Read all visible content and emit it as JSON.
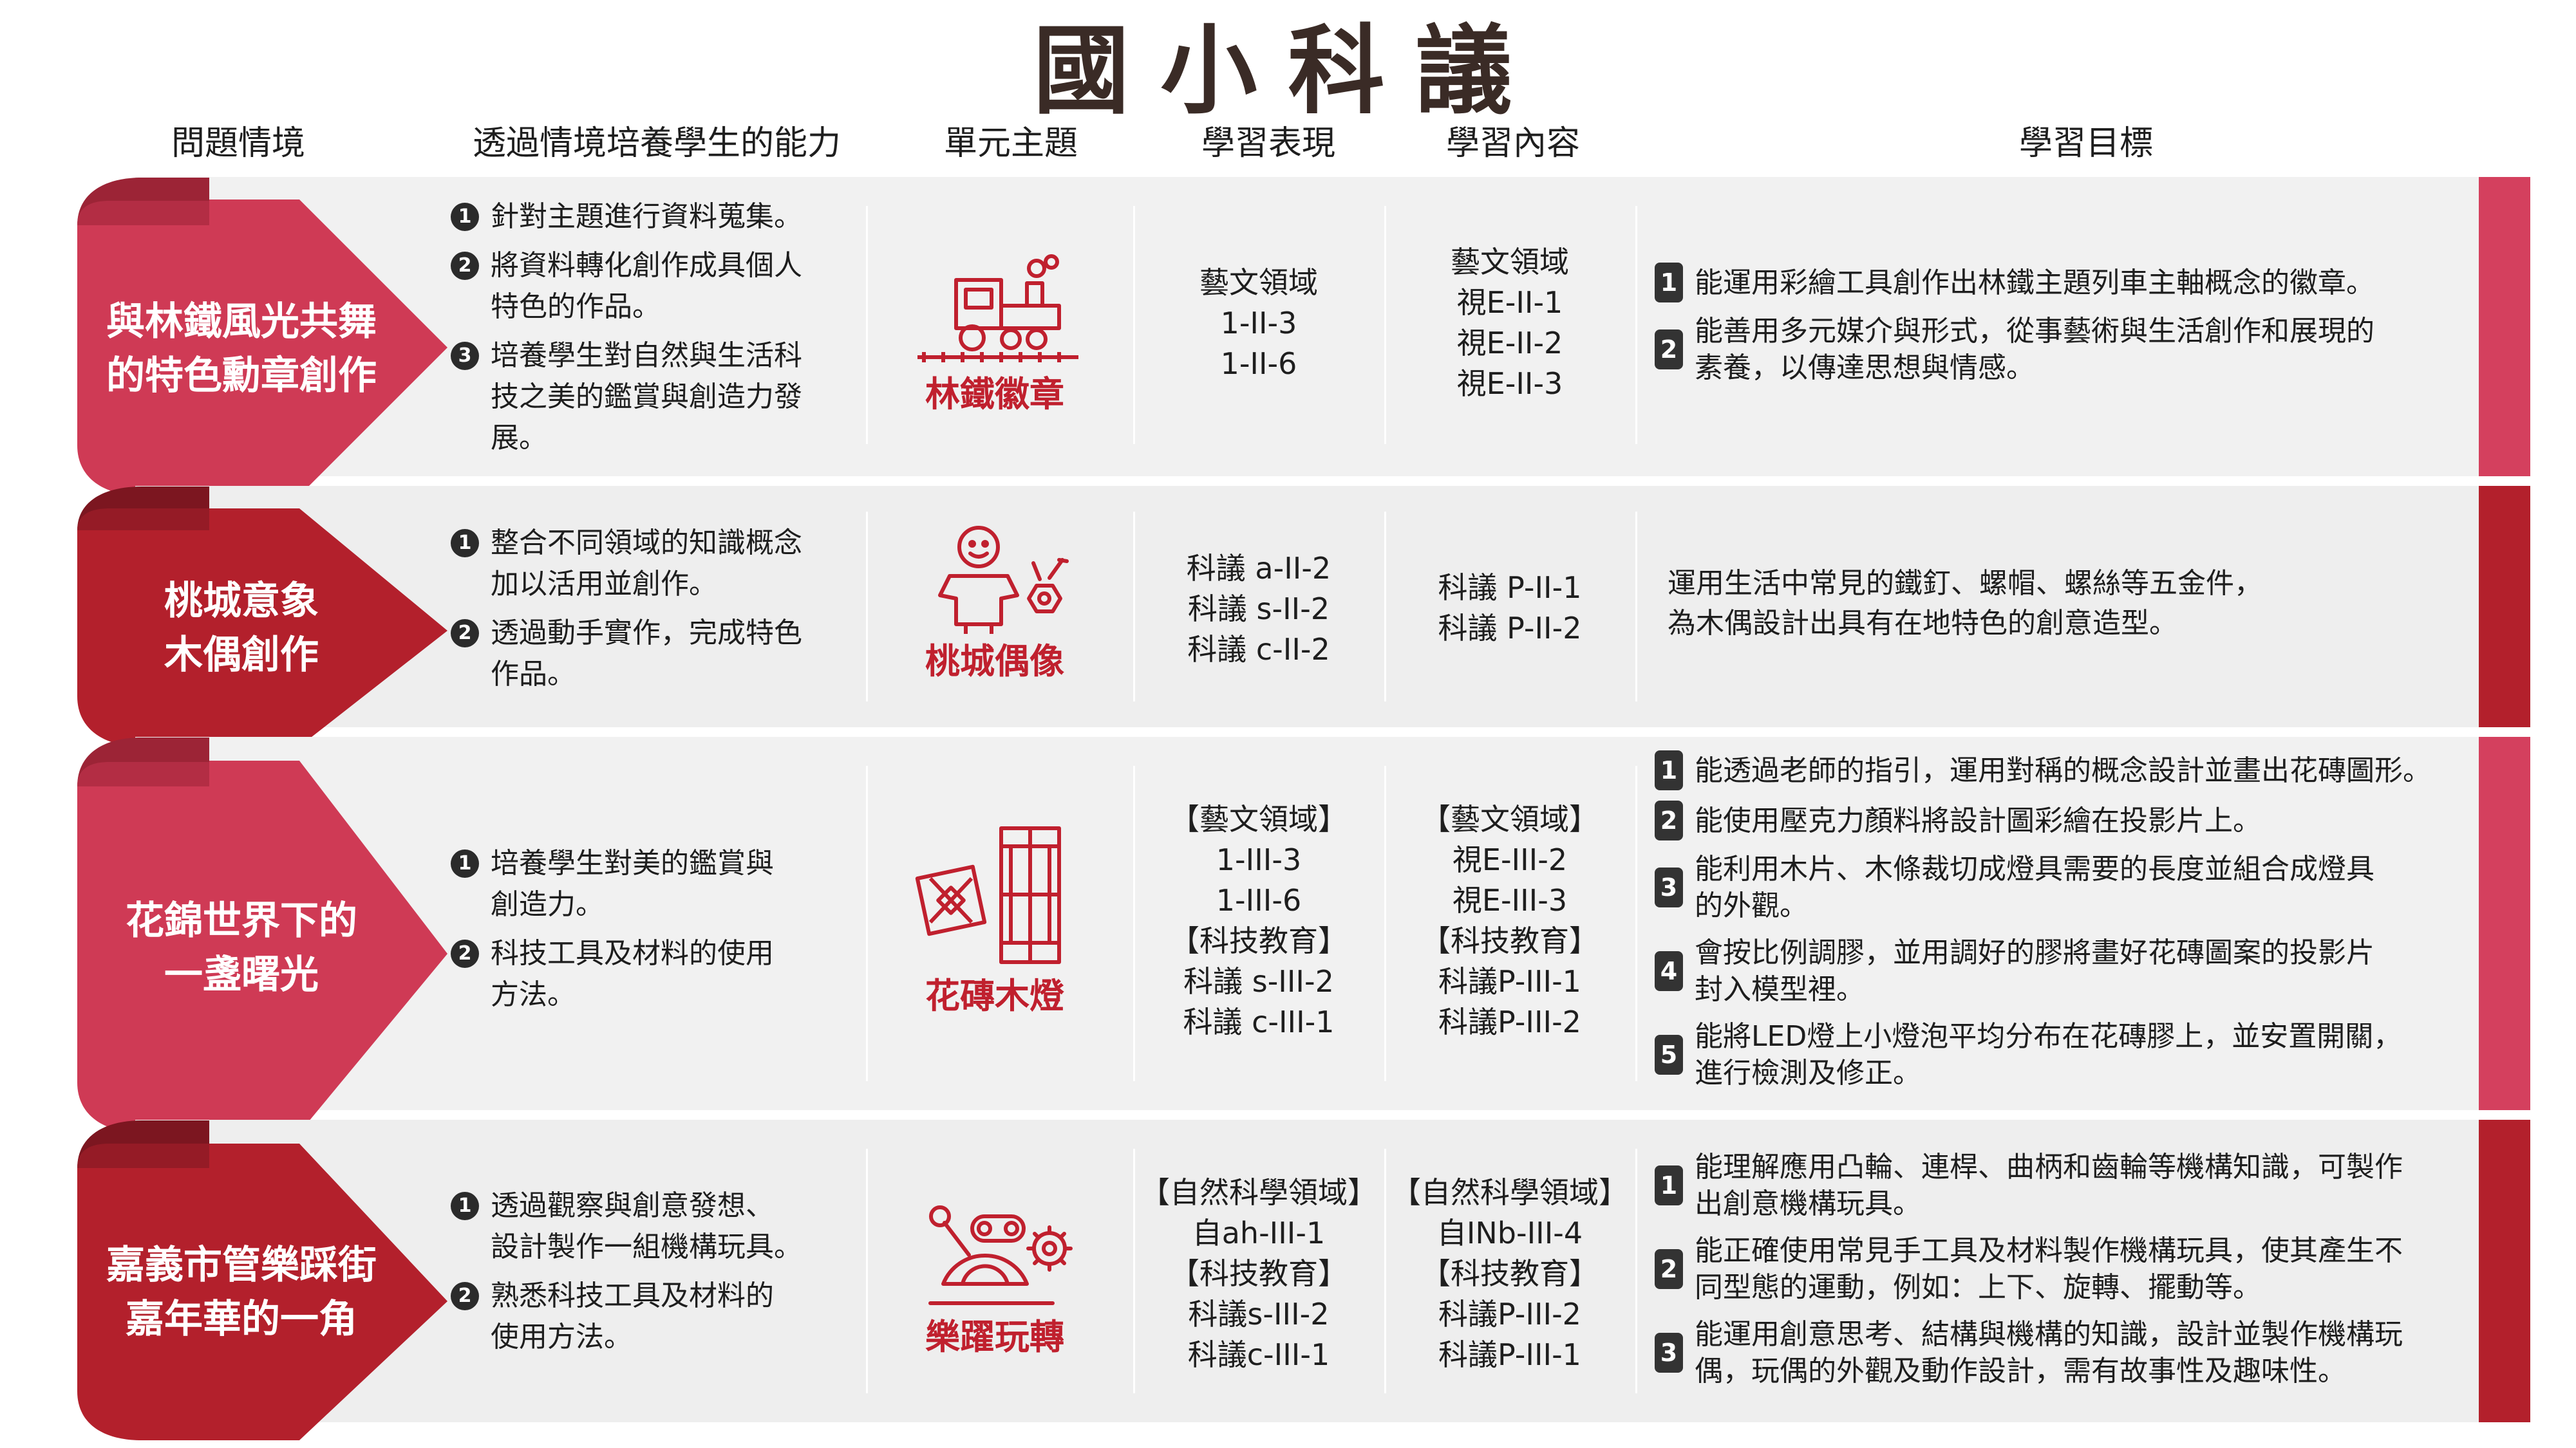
{
  "title": "國小科議",
  "headers": {
    "problem": "問題情境",
    "ability": "透過情境培養學生的能力",
    "unit": "單元主題",
    "performance": "學習表現",
    "content": "學習內容",
    "goal": "學習目標"
  },
  "colors": {
    "pink": "#cf3a55",
    "red": "#b3202c",
    "right_bar_pink": "#d4405e",
    "right_bar_red": "#b3202c",
    "icon_red": "#c0202e"
  },
  "rows": [
    {
      "label": "與林鐵風光共舞\n的特色勳章創作",
      "abilities": [
        "針對主題進行資料蒐集。",
        "將資料轉化創作成具個人\n特色的作品。",
        "培養學生對自然與生活科\n技之美的鑑賞與創造力發\n展。"
      ],
      "unit_icon": "train-icon",
      "unit_name": "林鐵徽章",
      "performance": "藝文領域\n1-II-3\n1-II-6",
      "content": "藝文領域\n視E-II-1\n視E-II-2\n視E-II-3",
      "goals": [
        "能運用彩繪工具創作出林鐵主題列車主軸概念的徽章。",
        "能善用多元媒介與形式，從事藝術與生活創作和展現的\n素養，以傳達思想與情感。"
      ]
    },
    {
      "label": "桃城意象\n木偶創作",
      "abilities": [
        "整合不同領域的知識概念\n加以活用並創作。",
        "透過動手實作，完成特色\n作品。"
      ],
      "unit_icon": "puppet-icon",
      "unit_name": "桃城偶像",
      "performance": "科議 a-II-2\n科議 s-II-2\n科議 c-II-2",
      "content": "科議 P-II-1\n科議 P-II-2",
      "goal_text": "運用生活中常見的鐵釘、螺帽、螺絲等五金件，\n為木偶設計出具有在地特色的創意造型。"
    },
    {
      "label": "花錦世界下的\n一盞曙光",
      "abilities": [
        "培養學生對美的鑑賞與\n創造力。",
        "科技工具及材料的使用\n方法。"
      ],
      "unit_icon": "lantern-icon",
      "unit_name": "花磚木燈",
      "performance": "【藝文領域】\n1-III-3\n1-III-6\n【科技教育】\n科議 s-III-2\n科議 c-III-1",
      "content": "【藝文領域】\n視E-III-2\n視E-III-3\n【科技教育】\n科議P-III-1\n科議P-III-2",
      "goals": [
        "能透過老師的指引，運用對稱的概念設計並畫出花磚圖形。",
        "能使用壓克力顏料將設計圖彩繪在投影片上。",
        "能利用木片、木條裁切成燈具需要的長度並組合成燈具\n的外觀。",
        "會按比例調膠，並用調好的膠將畫好花磚圖案的投影片\n封入模型裡。",
        "能將LED燈上小燈泡平均分布在花磚膠上，並安置開關，\n進行檢測及修正。"
      ]
    },
    {
      "label": "嘉義市管樂踩街\n嘉年華的一角",
      "abilities": [
        "透過觀察與創意發想、\n設計製作一組機構玩具。",
        "熟悉科技工具及材料的\n使用方法。"
      ],
      "unit_icon": "mechanism-icon",
      "unit_name": "樂躍玩轉",
      "performance": "【自然科學領域】\n自ah-III-1\n【科技教育】\n科議s-III-2\n科議c-III-1",
      "content": "【自然科學領域】\n自INb-III-4\n【科技教育】\n科議P-III-2\n科議P-III-1",
      "goals": [
        "能理解應用凸輪、連桿、曲柄和齒輪等機構知識，可製作\n出創意機構玩具。",
        "能正確使用常見手工具及材料製作機構玩具，使其產生不\n同型態的運動，例如：上下、旋轉、擺動等。",
        "能運用創意思考、結構與機構的知識，設計並製作機構玩\n偶，玩偶的外觀及動作設計，需有故事性及趣味性。"
      ]
    }
  ],
  "num_labels": [
    "1",
    "2",
    "3",
    "4",
    "5"
  ]
}
